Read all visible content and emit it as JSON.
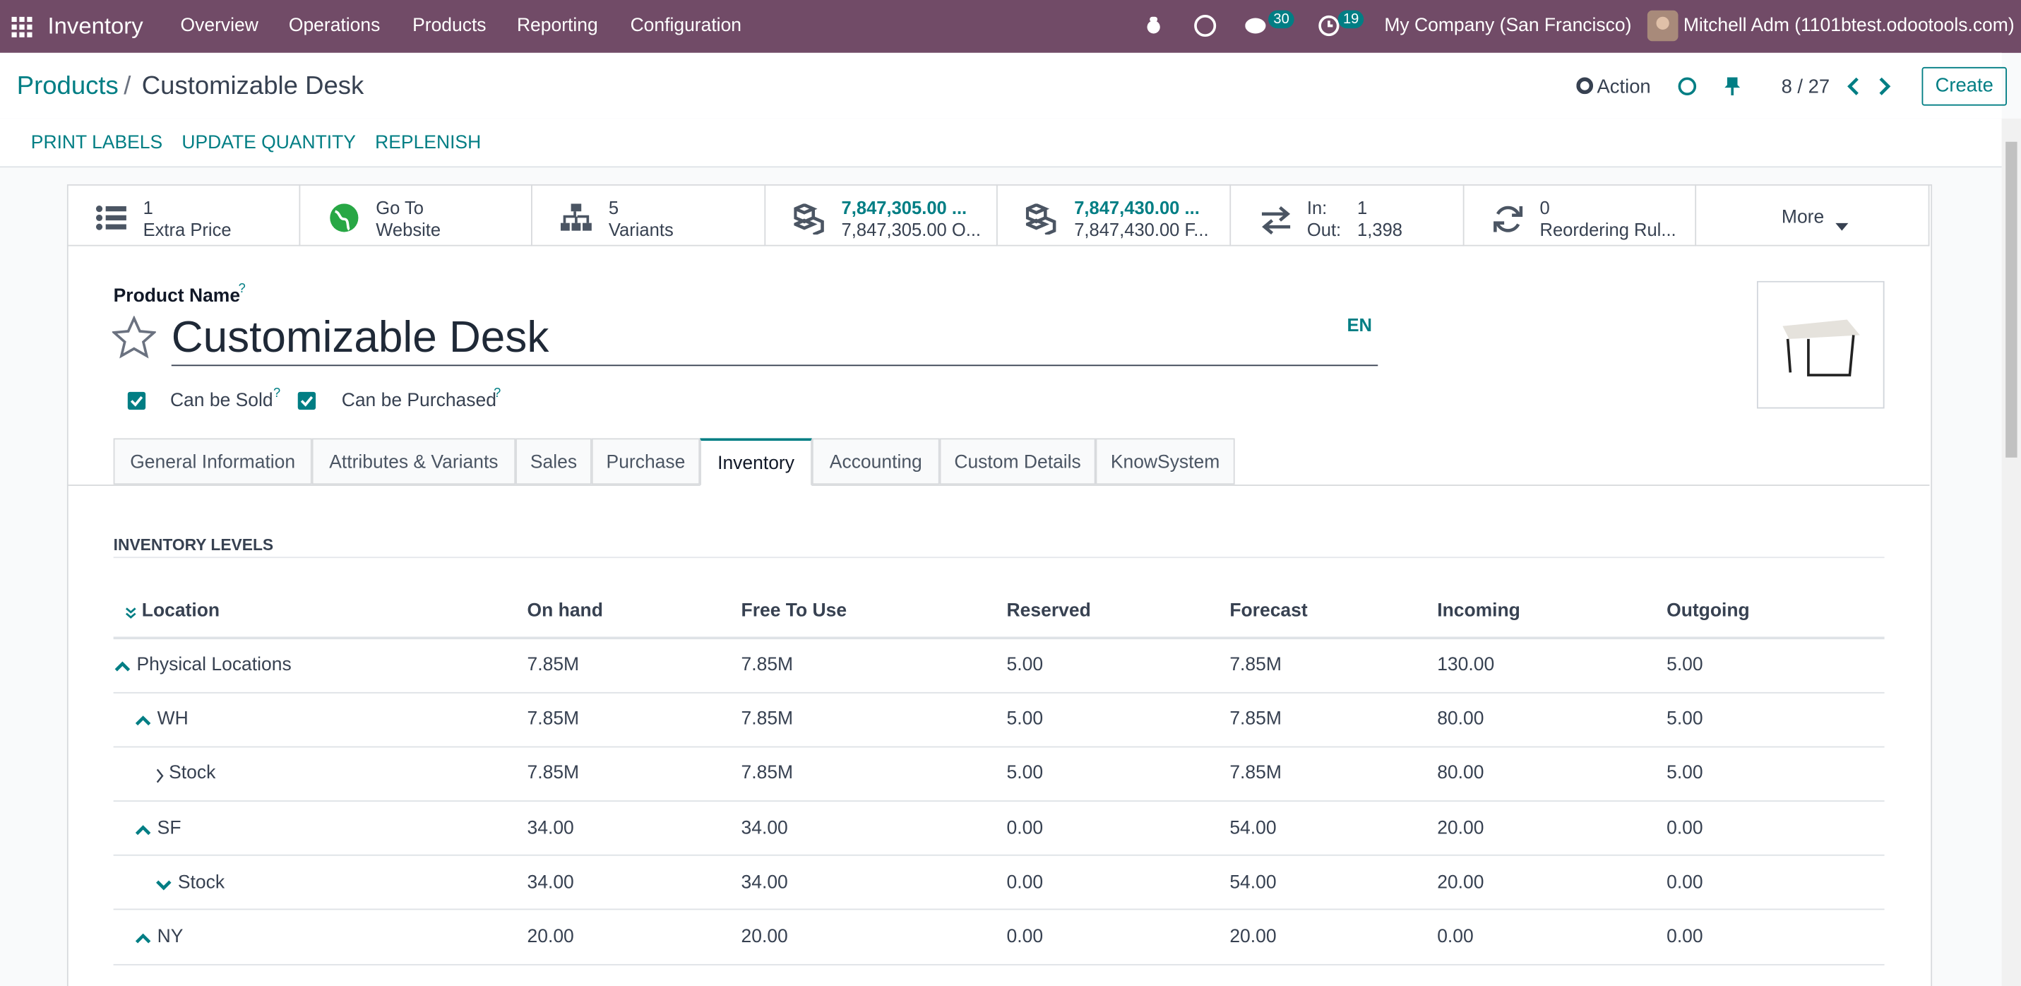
{
  "navbar": {
    "app": "Inventory",
    "menu": [
      "Overview",
      "Operations",
      "Products",
      "Reporting",
      "Configuration"
    ],
    "messages_count": "30",
    "activities_count": "19",
    "company": "My Company (San Francisco)",
    "user": "Mitchell Adm (1101btest.odootools.com)"
  },
  "control_panel": {
    "breadcrumb": [
      "Products",
      "Customizable Desk"
    ],
    "separator": "/",
    "action": "Action",
    "pager": "8 / 27",
    "create": "Create"
  },
  "status_bar": {
    "buttons": [
      "PRINT LABELS",
      "UPDATE QUANTITY",
      "REPLENISH"
    ]
  },
  "smart_buttons": {
    "items": [
      {
        "value": "1",
        "label": "Extra Price"
      },
      {
        "value": "Go To",
        "label": "Website"
      },
      {
        "value": "5",
        "label": "Variants"
      },
      {
        "value": "7,847,305.00 ...",
        "label": "7,847,305.00 O..."
      },
      {
        "value": "7,847,430.00 ...",
        "label": "7,847,430.00 F..."
      }
    ],
    "in_out": {
      "in_label": "In:",
      "in_value": "1",
      "out_label": "Out:",
      "out_value": "1,398"
    },
    "reordering": {
      "value": "0",
      "label": "Reordering Rul..."
    },
    "more": "More"
  },
  "form": {
    "name_label": "Product Name",
    "name_help": "?",
    "name": "Customizable Desk",
    "lang": "EN",
    "checkboxes": [
      {
        "label": "Can be Sold",
        "help": "?"
      },
      {
        "label": "Can be Purchased",
        "help": "?"
      }
    ],
    "tabs": [
      "General Information",
      "Attributes & Variants",
      "Sales",
      "Purchase",
      "Inventory",
      "Accounting",
      "Custom Details",
      "KnowSystem"
    ],
    "active_tab": "Inventory"
  },
  "section_title": "INVENTORY LEVELS",
  "table": {
    "columns": [
      "Location",
      "On hand",
      "Free To Use",
      "Reserved",
      "Forecast",
      "Incoming",
      "Outgoing"
    ],
    "rows": [
      [
        "Physical Locations",
        "7.85M",
        "7.85M",
        "5.00",
        "7.85M",
        "130.00",
        "5.00"
      ],
      [
        "WH",
        "7.85M",
        "7.85M",
        "5.00",
        "7.85M",
        "80.00",
        "5.00"
      ],
      [
        "Stock",
        "7.85M",
        "7.85M",
        "5.00",
        "7.85M",
        "80.00",
        "5.00"
      ],
      [
        "SF",
        "34.00",
        "34.00",
        "0.00",
        "54.00",
        "20.00",
        "0.00"
      ],
      [
        "Stock",
        "34.00",
        "34.00",
        "0.00",
        "54.00",
        "20.00",
        "0.00"
      ],
      [
        "NY",
        "20.00",
        "20.00",
        "0.00",
        "20.00",
        "0.00",
        "0.00"
      ]
    ]
  }
}
